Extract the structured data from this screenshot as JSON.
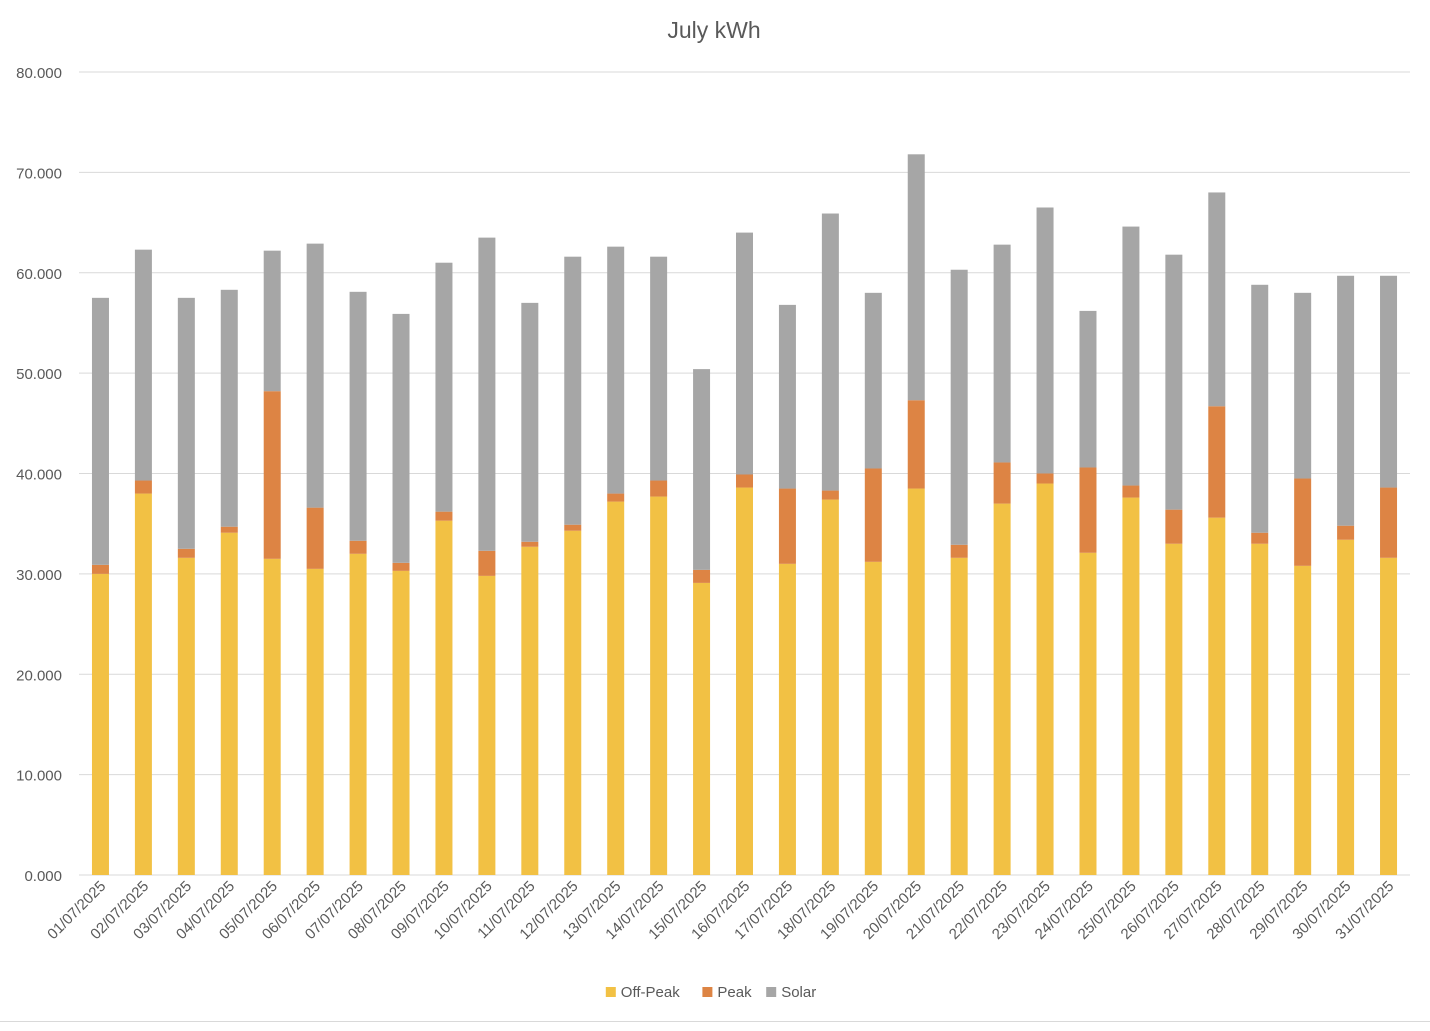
{
  "chart_data": {
    "type": "bar",
    "stacked": true,
    "title": "July kWh",
    "categories": [
      "01/07/2025",
      "02/07/2025",
      "03/07/2025",
      "04/07/2025",
      "05/07/2025",
      "06/07/2025",
      "07/07/2025",
      "08/07/2025",
      "09/07/2025",
      "10/07/2025",
      "11/07/2025",
      "12/07/2025",
      "13/07/2025",
      "14/07/2025",
      "15/07/2025",
      "16/07/2025",
      "17/07/2025",
      "18/07/2025",
      "19/07/2025",
      "20/07/2025",
      "21/07/2025",
      "22/07/2025",
      "23/07/2025",
      "24/07/2025",
      "25/07/2025",
      "26/07/2025",
      "27/07/2025",
      "28/07/2025",
      "29/07/2025",
      "30/07/2025",
      "31/07/2025"
    ],
    "series": [
      {
        "name": "Off-Peak",
        "color": "#F2C144",
        "values": [
          30.0,
          38.0,
          31.6,
          34.1,
          31.5,
          30.5,
          32.0,
          30.3,
          35.3,
          29.8,
          32.7,
          34.3,
          37.2,
          37.7,
          29.1,
          38.6,
          31.0,
          37.4,
          31.2,
          38.5,
          31.6,
          37.0,
          39.0,
          32.1,
          37.6,
          33.0,
          35.6,
          33.0,
          30.8,
          33.4,
          31.6
        ]
      },
      {
        "name": "Peak",
        "color": "#DD8444",
        "values": [
          0.9,
          1.3,
          0.9,
          0.6,
          16.7,
          6.1,
          1.3,
          0.8,
          0.9,
          2.5,
          0.5,
          0.6,
          0.8,
          1.6,
          1.3,
          1.3,
          7.5,
          0.9,
          9.3,
          8.8,
          1.3,
          4.1,
          1.0,
          8.5,
          1.2,
          3.4,
          11.1,
          1.1,
          8.7,
          1.4,
          7.0
        ]
      },
      {
        "name": "Solar",
        "color": "#A6A6A6",
        "values": [
          26.6,
          23.0,
          25.0,
          23.6,
          14.0,
          26.3,
          24.8,
          24.8,
          24.8,
          31.2,
          23.8,
          26.7,
          24.6,
          22.3,
          20.0,
          24.1,
          18.3,
          27.6,
          17.5,
          24.5,
          27.4,
          21.7,
          26.5,
          15.6,
          25.8,
          25.4,
          21.3,
          24.7,
          18.5,
          24.9,
          21.1
        ]
      }
    ],
    "ylim": [
      0,
      80
    ],
    "yticks": [
      "0.000",
      "10.000",
      "20.000",
      "30.000",
      "40.000",
      "50.000",
      "60.000",
      "70.000",
      "80.000"
    ],
    "ytick_values": [
      0,
      10,
      20,
      30,
      40,
      50,
      60,
      70,
      80
    ],
    "grid": true,
    "legend": "bottom",
    "gridline_color": "#D9D9D9",
    "text_color": "#595959"
  }
}
